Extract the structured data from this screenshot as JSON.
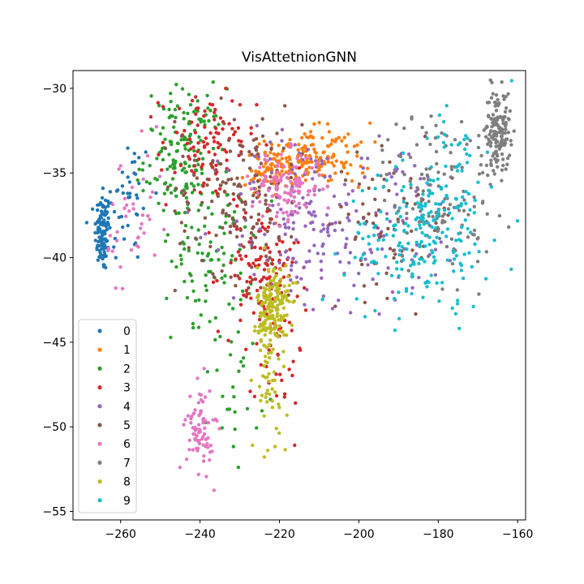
{
  "chart_data": {
    "type": "scatter",
    "title": "VisAttetnionGNN",
    "xlabel": "",
    "ylabel": "",
    "xlim": [
      -272,
      -158
    ],
    "ylim": [
      -55.5,
      -28.95
    ],
    "xticks": [
      -260,
      -240,
      -220,
      -200,
      -180,
      -160
    ],
    "yticks": [
      -30,
      -35,
      -40,
      -45,
      -50,
      -55
    ],
    "xtick_labels": [
      "−260",
      "−240",
      "−220",
      "−200",
      "−180",
      "−160"
    ],
    "ytick_labels": [
      "−30",
      "−35",
      "−40",
      "−45",
      "−50",
      "−55"
    ],
    "grid": false,
    "legend_position": "lower-left",
    "series": [
      {
        "name": "0",
        "color": "#1f77b4",
        "clusters": [
          {
            "cx": -264.5,
            "cy": -38.5,
            "sx": 1.0,
            "sy": 1.2,
            "n": 110
          },
          {
            "cx": -258,
            "cy": -36.5,
            "sx": 3.0,
            "sy": 2.0,
            "n": 40
          }
        ]
      },
      {
        "name": "1",
        "color": "#ff7f0e",
        "clusters": [
          {
            "cx": -214,
            "cy": -34.2,
            "sx": 4.5,
            "sy": 0.9,
            "n": 140
          },
          {
            "cx": -223,
            "cy": -35.0,
            "sx": 3.0,
            "sy": 0.6,
            "n": 50
          },
          {
            "cx": -203,
            "cy": -34.0,
            "sx": 3.0,
            "sy": 1.0,
            "n": 30
          }
        ]
      },
      {
        "name": "2",
        "color": "#2ca02c",
        "clusters": [
          {
            "cx": -244,
            "cy": -34.0,
            "sx": 5.0,
            "sy": 2.0,
            "n": 160
          },
          {
            "cx": -237,
            "cy": -40.0,
            "sx": 5.0,
            "sy": 2.5,
            "n": 90
          },
          {
            "cx": -231,
            "cy": -48.0,
            "sx": 3.0,
            "sy": 2.0,
            "n": 25
          }
        ]
      },
      {
        "name": "3",
        "color": "#d62728",
        "clusters": [
          {
            "cx": -238,
            "cy": -33.5,
            "sx": 6.0,
            "sy": 1.6,
            "n": 100
          },
          {
            "cx": -225,
            "cy": -40.5,
            "sx": 5.0,
            "sy": 2.0,
            "n": 110
          },
          {
            "cx": -220,
            "cy": -45.0,
            "sx": 3.0,
            "sy": 3.0,
            "n": 40
          }
        ]
      },
      {
        "name": "4",
        "color": "#9467bd",
        "clusters": [
          {
            "cx": -215,
            "cy": -38.0,
            "sx": 9.0,
            "sy": 2.8,
            "n": 150
          },
          {
            "cx": -190,
            "cy": -38.0,
            "sx": 8.0,
            "sy": 2.5,
            "n": 70
          }
        ]
      },
      {
        "name": "5",
        "color": "#8c564b",
        "clusters": [
          {
            "cx": -230,
            "cy": -36.0,
            "sx": 8.0,
            "sy": 2.5,
            "n": 150
          },
          {
            "cx": -192,
            "cy": -38.0,
            "sx": 8.0,
            "sy": 2.0,
            "n": 70
          }
        ]
      },
      {
        "name": "6",
        "color": "#e377c2",
        "clusters": [
          {
            "cx": -218,
            "cy": -35.8,
            "sx": 4.5,
            "sy": 1.0,
            "n": 120
          },
          {
            "cx": -240,
            "cy": -50.0,
            "sx": 1.7,
            "sy": 1.3,
            "n": 80
          },
          {
            "cx": -257,
            "cy": -38.5,
            "sx": 4.0,
            "sy": 2.5,
            "n": 40
          }
        ]
      },
      {
        "name": "7",
        "color": "#7f7f7f",
        "clusters": [
          {
            "cx": -165,
            "cy": -32.5,
            "sx": 1.6,
            "sy": 1.2,
            "n": 150
          },
          {
            "cx": -180,
            "cy": -36.0,
            "sx": 7.0,
            "sy": 2.5,
            "n": 130
          }
        ]
      },
      {
        "name": "8",
        "color": "#bcbd22",
        "clusters": [
          {
            "cx": -221.5,
            "cy": -43.0,
            "sx": 2.0,
            "sy": 1.3,
            "n": 180
          },
          {
            "cx": -223,
            "cy": -48.0,
            "sx": 2.5,
            "sy": 2.0,
            "n": 40
          }
        ]
      },
      {
        "name": "9",
        "color": "#17becf",
        "clusters": [
          {
            "cx": -185,
            "cy": -39.0,
            "sx": 9.0,
            "sy": 2.0,
            "n": 180
          },
          {
            "cx": -176,
            "cy": -35.0,
            "sx": 4.0,
            "sy": 2.5,
            "n": 60
          }
        ]
      }
    ]
  }
}
